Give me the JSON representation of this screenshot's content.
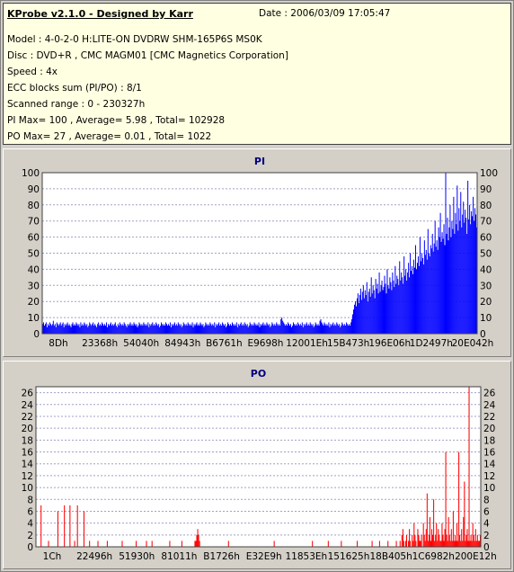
{
  "header": {
    "title": "KProbe v2.1.0 - Designed by Karr",
    "date": "Date : 2006/03/09 17:05:47",
    "lines": [
      "Model : 4-0-2-0 H:LITE-ON DVDRW SHM-165P6S MS0K",
      "Disc : DVD+R , CMC MAGM01 [CMC Magnetics Corporation]",
      "Speed : 4x",
      "ECC blocks sum (PI/PO) : 8/1",
      "Scanned range : 0 - 230327h",
      "PI Max= 100 , Average= 5.98 , Total= 102928",
      "PO Max= 27 , Average= 0.01 , Total= 1022"
    ]
  },
  "colors": {
    "pi_series": "#0000ff",
    "po_series": "#ff0000",
    "plot_bg": "#ffffff",
    "grid": "#a0a0c8",
    "title": "#000080"
  },
  "chart_data": [
    {
      "type": "bar",
      "title": "PI",
      "ylim": [
        0,
        100
      ],
      "yticks": [
        0,
        10,
        20,
        30,
        40,
        50,
        60,
        70,
        80,
        90,
        100
      ],
      "xticks": [
        "8Dh",
        "23368h",
        "54040h",
        "84943h",
        "B6761h",
        "E9698h",
        "12001Eh",
        "15B473h",
        "196E06h",
        "1D2497h",
        "20E042h"
      ],
      "grid": true,
      "legend": "none",
      "series": [
        {
          "values": [
            6,
            7,
            5,
            6,
            7,
            4,
            6,
            5,
            7,
            6,
            5,
            6,
            8,
            5,
            6,
            4,
            7,
            6,
            5,
            6,
            7,
            5,
            6,
            7,
            4,
            6,
            5,
            6,
            7,
            5,
            6,
            5,
            4,
            6,
            7,
            5,
            6,
            5,
            7,
            6,
            5,
            6,
            4,
            7,
            5,
            6,
            5,
            7,
            6,
            5,
            6,
            4,
            5,
            7,
            6,
            5,
            6,
            7,
            5,
            6,
            5,
            4,
            6,
            7,
            5,
            6,
            5,
            7,
            6,
            5,
            6,
            5,
            7,
            4,
            6,
            5,
            6,
            7,
            5,
            6,
            5,
            6,
            7,
            5,
            4,
            6,
            5,
            7,
            6,
            5,
            6,
            5,
            7,
            6,
            5,
            4,
            6,
            5,
            6,
            7,
            5,
            6,
            5,
            7,
            6,
            5,
            6,
            4,
            5,
            7,
            6,
            5,
            6,
            5,
            7,
            6,
            5,
            6,
            5,
            7,
            4,
            6,
            5,
            6,
            7,
            5,
            6,
            5,
            7,
            6,
            5,
            6,
            4,
            5,
            7,
            6,
            5,
            6,
            5,
            7,
            6,
            5,
            6,
            5,
            7,
            4,
            6,
            5,
            6,
            7,
            5,
            6,
            5,
            7,
            6,
            5,
            6,
            4,
            5,
            7,
            6,
            5,
            6,
            5,
            7,
            6,
            5,
            6,
            5,
            7,
            4,
            6,
            5,
            6,
            7,
            5,
            6,
            5,
            7,
            6,
            5,
            6,
            4,
            5,
            7,
            6,
            5,
            6,
            5,
            7,
            6,
            5,
            6,
            5,
            7,
            4,
            6,
            5,
            6,
            7,
            5,
            6,
            5,
            7,
            6,
            5,
            6,
            4,
            5,
            7,
            6,
            5,
            6,
            5,
            7,
            6,
            5,
            6,
            5,
            7,
            4,
            6,
            5,
            6,
            7,
            5,
            6,
            5,
            7,
            6,
            5,
            6,
            4,
            5,
            7,
            6,
            5,
            6,
            5,
            7,
            6,
            5,
            6,
            5,
            7,
            4,
            6,
            5,
            6,
            7,
            5,
            6,
            5,
            7,
            6,
            5,
            6,
            4,
            5,
            7,
            6,
            5,
            6,
            5,
            7,
            6,
            5,
            6,
            5,
            9,
            10,
            8,
            7,
            6,
            5,
            6,
            5,
            7,
            6,
            5,
            6,
            4,
            5,
            7,
            6,
            5,
            6,
            5,
            7,
            6,
            5,
            6,
            5,
            7,
            4,
            6,
            5,
            6,
            7,
            5,
            6,
            5,
            7,
            6,
            5,
            6,
            4,
            5,
            7,
            6,
            5,
            6,
            5,
            8,
            9,
            7,
            6,
            5,
            7,
            6,
            5,
            6,
            5,
            7,
            4,
            6,
            5,
            6,
            7,
            5,
            6,
            5,
            7,
            6,
            5,
            6,
            4,
            5,
            7,
            6,
            5,
            6,
            5,
            7,
            6,
            5,
            6,
            5,
            7,
            9,
            12,
            15,
            18,
            20,
            17,
            22,
            25,
            19,
            24,
            28,
            21,
            26,
            30,
            22,
            27,
            24,
            32,
            20,
            26,
            28,
            23,
            35,
            25,
            30,
            27,
            22,
            34,
            28,
            31,
            25,
            38,
            26,
            30,
            33,
            27,
            29,
            36,
            31,
            25,
            40,
            30,
            28,
            35,
            32,
            27,
            38,
            33,
            29,
            42,
            31,
            36,
            34,
            30,
            45,
            33,
            38,
            35,
            31,
            48,
            36,
            40,
            33,
            38,
            44,
            35,
            50,
            39,
            42,
            37,
            46,
            41,
            55,
            40,
            44,
            48,
            42,
            60,
            45,
            50,
            47,
            43,
            58,
            49,
            52,
            46,
            65,
            50,
            48,
            55,
            53,
            62,
            51,
            56,
            70,
            54,
            58,
            52,
            66,
            60,
            75,
            57,
            63,
            59,
            68,
            55,
            100,
            62,
            72,
            58,
            66,
            80,
            60,
            70,
            65,
            85,
            62,
            75,
            68,
            92,
            64,
            78,
            70,
            88,
            66,
            74,
            82,
            69,
            77,
            72,
            62,
            95,
            71,
            80,
            68,
            76,
            73,
            85,
            70,
            78,
            74,
            66
          ]
        }
      ]
    },
    {
      "type": "bar",
      "title": "PO",
      "ylim": [
        0,
        27
      ],
      "yticks": [
        0,
        2,
        4,
        6,
        8,
        10,
        12,
        14,
        16,
        18,
        20,
        22,
        24,
        26
      ],
      "xticks": [
        "1Ch",
        "22496h",
        "51930h",
        "81011h",
        "B1726h",
        "E32E9h",
        "11853Eh",
        "151625h",
        "18B405h",
        "1C6982h",
        "200E12h"
      ],
      "grid": true,
      "legend": "none",
      "series": [
        {
          "values": [
            0,
            0,
            0,
            0,
            0,
            7,
            0,
            0,
            0,
            0,
            0,
            0,
            0,
            1,
            0,
            0,
            0,
            0,
            0,
            0,
            0,
            0,
            0,
            6,
            0,
            0,
            0,
            0,
            0,
            0,
            7,
            0,
            0,
            0,
            0,
            0,
            7,
            0,
            0,
            0,
            0,
            1,
            0,
            0,
            7,
            0,
            0,
            0,
            0,
            0,
            0,
            6,
            0,
            0,
            0,
            0,
            0,
            1,
            0,
            0,
            0,
            0,
            0,
            0,
            0,
            0,
            1,
            0,
            0,
            0,
            0,
            0,
            0,
            0,
            0,
            0,
            1,
            0,
            0,
            0,
            0,
            0,
            0,
            0,
            0,
            0,
            0,
            0,
            0,
            0,
            0,
            0,
            1,
            0,
            0,
            0,
            0,
            0,
            0,
            0,
            0,
            0,
            0,
            0,
            0,
            0,
            0,
            1,
            0,
            0,
            0,
            0,
            0,
            0,
            0,
            0,
            0,
            0,
            1,
            0,
            0,
            0,
            0,
            0,
            1,
            0,
            0,
            0,
            0,
            0,
            0,
            0,
            0,
            0,
            0,
            0,
            0,
            0,
            0,
            0,
            0,
            0,
            0,
            1,
            0,
            0,
            0,
            0,
            0,
            0,
            0,
            0,
            0,
            0,
            0,
            0,
            1,
            0,
            0,
            0,
            0,
            0,
            0,
            0,
            0,
            0,
            0,
            0,
            0,
            0,
            1,
            1,
            2,
            3,
            2,
            1,
            0,
            0,
            0,
            0,
            0,
            0,
            0,
            0,
            0,
            0,
            0,
            0,
            0,
            0,
            0,
            0,
            0,
            0,
            0,
            0,
            0,
            0,
            0,
            0,
            0,
            0,
            0,
            0,
            0,
            0,
            1,
            0,
            0,
            0,
            0,
            0,
            0,
            0,
            0,
            0,
            0,
            0,
            0,
            0,
            0,
            0,
            0,
            0,
            0,
            0,
            0,
            0,
            0,
            0,
            0,
            0,
            0,
            0,
            0,
            0,
            0,
            0,
            0,
            0,
            0,
            0,
            0,
            0,
            0,
            0,
            0,
            0,
            0,
            0,
            0,
            0,
            0,
            0,
            0,
            1,
            0,
            0,
            0,
            0,
            0,
            0,
            0,
            0,
            0,
            0,
            0,
            0,
            0,
            0,
            0,
            0,
            0,
            0,
            0,
            0,
            0,
            0,
            0,
            0,
            0,
            0,
            0,
            0,
            0,
            0,
            0,
            0,
            0,
            0,
            0,
            0,
            0,
            0,
            0,
            0,
            1,
            0,
            0,
            0,
            0,
            0,
            0,
            0,
            0,
            0,
            0,
            0,
            0,
            0,
            0,
            0,
            0,
            1,
            0,
            0,
            0,
            0,
            0,
            0,
            0,
            0,
            0,
            0,
            0,
            0,
            0,
            1,
            0,
            0,
            0,
            0,
            0,
            0,
            0,
            0,
            0,
            0,
            0,
            0,
            0,
            0,
            0,
            0,
            1,
            0,
            0,
            0,
            0,
            0,
            0,
            0,
            0,
            0,
            0,
            0,
            0,
            0,
            0,
            0,
            1,
            0,
            0,
            0,
            0,
            0,
            0,
            0,
            1,
            0,
            0,
            0,
            0,
            0,
            0,
            0,
            0,
            1,
            0,
            0,
            0,
            0,
            0,
            0,
            0,
            0,
            1,
            0,
            0,
            0,
            1,
            0,
            2,
            3,
            1,
            0,
            1,
            2,
            0,
            1,
            3,
            1,
            0,
            2,
            1,
            4,
            2,
            1,
            0,
            3,
            2,
            1,
            1,
            2,
            0,
            4,
            2,
            1,
            3,
            9,
            1,
            2,
            5,
            1,
            3,
            2,
            8,
            1,
            2,
            4,
            1,
            3,
            2,
            1,
            1,
            4,
            2,
            1,
            3,
            16,
            2,
            1,
            5,
            2,
            1,
            3,
            1,
            6,
            1,
            2,
            1,
            4,
            1,
            16,
            2,
            1,
            3,
            1,
            5,
            11,
            1,
            2,
            3,
            1,
            27,
            1,
            2,
            1,
            4,
            2,
            1,
            3,
            1,
            2,
            1,
            1,
            2
          ]
        }
      ]
    }
  ]
}
